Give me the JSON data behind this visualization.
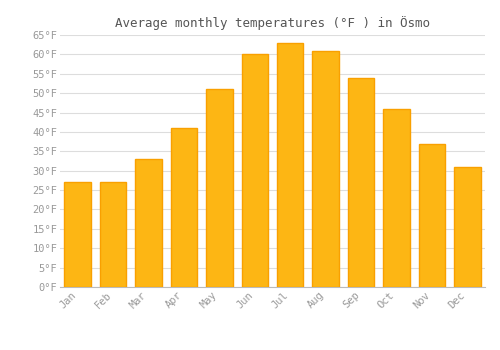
{
  "title": "Average monthly temperatures (°F ) in Ösmo",
  "months": [
    "Jan",
    "Feb",
    "Mar",
    "Apr",
    "May",
    "Jun",
    "Jul",
    "Aug",
    "Sep",
    "Oct",
    "Nov",
    "Dec"
  ],
  "values": [
    27,
    27,
    33,
    41,
    51,
    60,
    63,
    61,
    54,
    46,
    37,
    31
  ],
  "bar_color": "#FDB614",
  "bar_edge_color": "#F9A000",
  "ylim": [
    0,
    65
  ],
  "yticks": [
    0,
    5,
    10,
    15,
    20,
    25,
    30,
    35,
    40,
    45,
    50,
    55,
    60,
    65
  ],
  "ytick_labels": [
    "0°F",
    "5°F",
    "10°F",
    "15°F",
    "20°F",
    "25°F",
    "30°F",
    "35°F",
    "40°F",
    "45°F",
    "50°F",
    "55°F",
    "60°F",
    "65°F"
  ],
  "background_color": "#ffffff",
  "grid_color": "#dddddd",
  "title_fontsize": 9,
  "tick_fontsize": 7.5,
  "font_family": "monospace",
  "tick_color": "#999999",
  "title_color": "#555555"
}
